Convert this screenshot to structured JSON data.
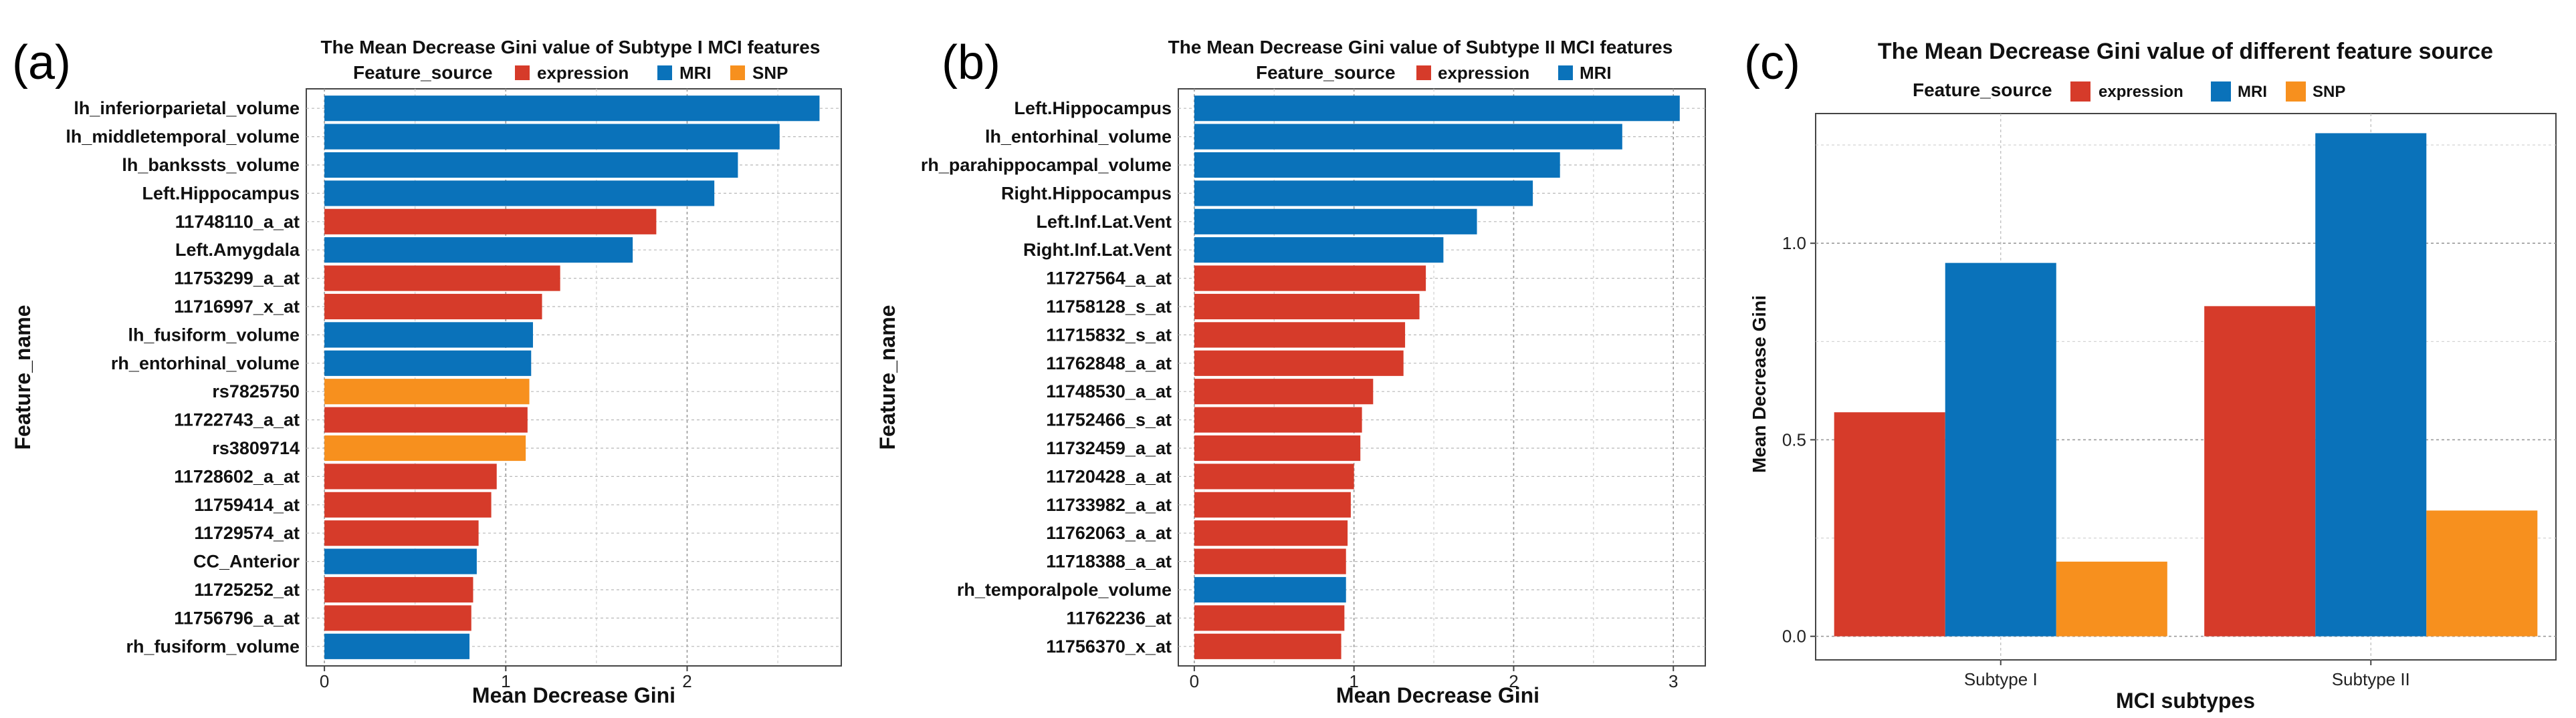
{
  "colors": {
    "expression": "#d63b2a",
    "MRI": "#0a72ba",
    "SNP": "#f7901e"
  },
  "chart_data": [
    {
      "panel": "(a)",
      "type": "bar",
      "orientation": "horizontal",
      "title": "The Mean Decrease Gini value of Subtype I MCI features",
      "legend_title": "Feature_source",
      "legend": [
        "expression",
        "MRI",
        "SNP"
      ],
      "xlabel": "Mean Decrease Gini",
      "ylabel": "Feature_name",
      "xlim": [
        -0.1,
        2.85
      ],
      "xticks": [
        0,
        1,
        2
      ],
      "grid": true,
      "categories": [
        "lh_inferiorparietal_volume",
        "lh_middletemporal_volume",
        "lh_bankssts_volume",
        "Left.Hippocampus",
        "11748110_a_at",
        "Left.Amygdala",
        "11753299_a_at",
        "11716997_x_at",
        "lh_fusiform_volume",
        "rh_entorhinal_volume",
        "rs7825750",
        "11722743_a_at",
        "rs3809714",
        "11728602_a_at",
        "11759414_at",
        "11729574_at",
        "CC_Anterior",
        "11725252_at",
        "11756796_a_at",
        "rh_fusiform_volume"
      ],
      "values": [
        2.73,
        2.51,
        2.28,
        2.15,
        1.83,
        1.7,
        1.3,
        1.2,
        1.15,
        1.14,
        1.13,
        1.12,
        1.11,
        0.95,
        0.92,
        0.85,
        0.84,
        0.82,
        0.81,
        0.8
      ],
      "sources": [
        "MRI",
        "MRI",
        "MRI",
        "MRI",
        "expression",
        "MRI",
        "expression",
        "expression",
        "MRI",
        "MRI",
        "SNP",
        "expression",
        "SNP",
        "expression",
        "expression",
        "expression",
        "MRI",
        "expression",
        "expression",
        "MRI"
      ]
    },
    {
      "panel": "(b)",
      "type": "bar",
      "orientation": "horizontal",
      "title": "The Mean Decrease Gini value of Subtype II MCI features",
      "legend_title": "Feature_source",
      "legend": [
        "expression",
        "MRI"
      ],
      "xlabel": "Mean Decrease Gini",
      "ylabel": "Feature_name",
      "xlim": [
        -0.1,
        3.2
      ],
      "xticks": [
        0,
        1,
        2,
        3
      ],
      "grid": true,
      "categories": [
        "Left.Hippocampus",
        "lh_entorhinal_volume",
        "rh_parahippocampal_volume",
        "Right.Hippocampus",
        "Left.Inf.Lat.Vent",
        "Right.Inf.Lat.Vent",
        "11727564_a_at",
        "11758128_s_at",
        "11715832_s_at",
        "11762848_a_at",
        "11748530_a_at",
        "11752466_s_at",
        "11732459_a_at",
        "11720428_a_at",
        "11733982_a_at",
        "11762063_a_at",
        "11718388_a_at",
        "rh_temporalpole_volume",
        "11762236_at",
        "11756370_x_at"
      ],
      "values": [
        3.04,
        2.68,
        2.29,
        2.12,
        1.77,
        1.56,
        1.45,
        1.41,
        1.32,
        1.31,
        1.12,
        1.05,
        1.04,
        1.0,
        0.98,
        0.96,
        0.95,
        0.95,
        0.94,
        0.92
      ],
      "sources": [
        "MRI",
        "MRI",
        "MRI",
        "MRI",
        "MRI",
        "MRI",
        "expression",
        "expression",
        "expression",
        "expression",
        "expression",
        "expression",
        "expression",
        "expression",
        "expression",
        "expression",
        "expression",
        "MRI",
        "expression",
        "expression"
      ]
    },
    {
      "panel": "(c)",
      "type": "bar",
      "orientation": "vertical",
      "title": "The Mean Decrease Gini value of different feature source",
      "legend_title": "Feature_source",
      "legend": [
        "expression",
        "MRI",
        "SNP"
      ],
      "xlabel": "MCI subtypes",
      "ylabel": "Mean Decrease Gini",
      "ylim": [
        -0.06,
        1.33
      ],
      "yticks": [
        "0.0",
        "0.5",
        "1.0"
      ],
      "grid": true,
      "categories": [
        "Subtype I",
        "Subtype II"
      ],
      "series": [
        {
          "name": "expression",
          "values": [
            0.57,
            0.84
          ]
        },
        {
          "name": "MRI",
          "values": [
            0.95,
            1.28
          ]
        },
        {
          "name": "SNP",
          "values": [
            0.19,
            0.32
          ]
        }
      ]
    }
  ]
}
